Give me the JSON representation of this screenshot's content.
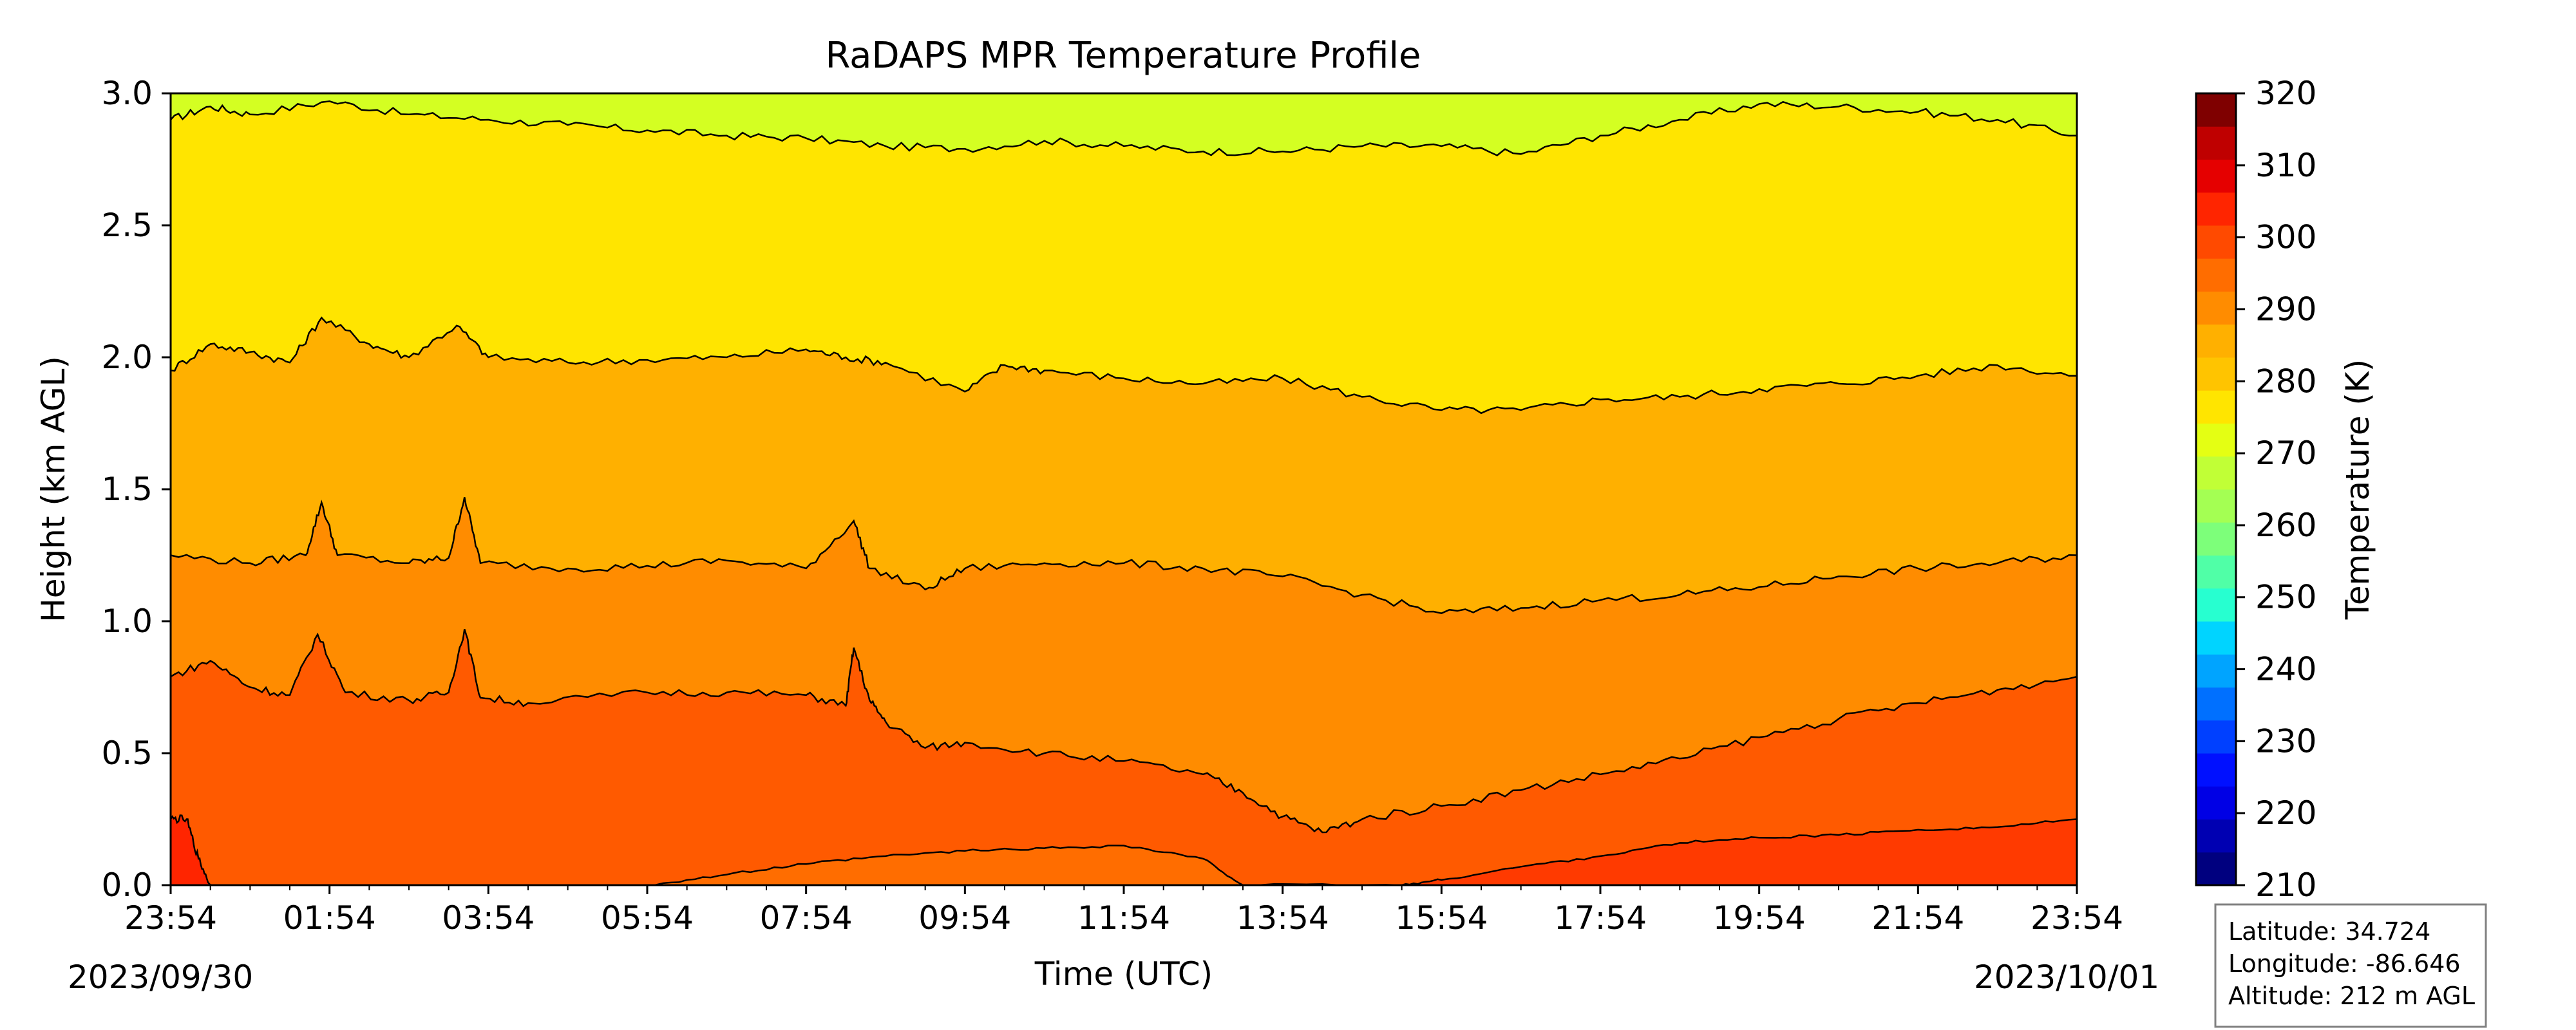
{
  "chart_data": {
    "type": "contour",
    "title": "RaDAPS MPR Temperature Profile",
    "xlabel": "Time (UTC)",
    "ylabel": "Height (km AGL)",
    "x_ticks": [
      "23:54",
      "01:54",
      "03:54",
      "05:54",
      "07:54",
      "09:54",
      "11:54",
      "13:54",
      "15:54",
      "17:54",
      "19:54",
      "21:54",
      "23:54"
    ],
    "start_date": "2023/09/30",
    "end_date": "2023/10/01",
    "xlim_hours": [
      0,
      24
    ],
    "y_ticks": [
      "0.0",
      "0.5",
      "1.0",
      "1.5",
      "2.0",
      "2.5",
      "3.0"
    ],
    "ylim": [
      0,
      3
    ],
    "colorbar": {
      "label": "Temperature (K)",
      "min": 210,
      "max": 320,
      "step": 5,
      "tick_labels": [
        "210",
        "220",
        "230",
        "240",
        "250",
        "260",
        "270",
        "280",
        "290",
        "300",
        "310",
        "320"
      ],
      "colors": [
        "#00007f",
        "#0000b2",
        "#0000e5",
        "#0010ff",
        "#0040ff",
        "#0070ff",
        "#00a4ff",
        "#00d4ff",
        "#27ffd0",
        "#50ffa7",
        "#7dff7a",
        "#a4ff53",
        "#c1ff36",
        "#e4ff13",
        "#ffe500",
        "#ffc400",
        "#ffb000",
        "#ff8c00",
        "#ff6d00",
        "#ff4a00",
        "#ff2500",
        "#e50000",
        "#bf0000",
        "#7f0000"
      ]
    },
    "contour_levels": [
      {
        "level": 305,
        "fill_color": "#ff2500",
        "points": [
          [
            0,
            0.25
          ],
          [
            0.2,
            0.25
          ],
          [
            0.35,
            0.1
          ],
          [
            0.5,
            0
          ]
        ]
      },
      {
        "level": 300,
        "fill_color": "#ff5a00",
        "points": [
          [
            0,
            0.79
          ],
          [
            0.5,
            0.85
          ],
          [
            1,
            0.75
          ],
          [
            1.5,
            0.72
          ],
          [
            1.85,
            0.95
          ],
          [
            2.2,
            0.73
          ],
          [
            3,
            0.7
          ],
          [
            3.5,
            0.73
          ],
          [
            3.7,
            0.97
          ],
          [
            3.9,
            0.71
          ],
          [
            4.5,
            0.69
          ],
          [
            6,
            0.73
          ],
          [
            7,
            0.73
          ],
          [
            8,
            0.72
          ],
          [
            8.5,
            0.68
          ],
          [
            8.6,
            0.9
          ],
          [
            8.8,
            0.7
          ],
          [
            9,
            0.62
          ],
          [
            9.5,
            0.52
          ],
          [
            10,
            0.54
          ],
          [
            11,
            0.5
          ],
          [
            12,
            0.47
          ],
          [
            13,
            0.42
          ],
          [
            13.5,
            0.35
          ],
          [
            14,
            0.26
          ],
          [
            14.5,
            0.2
          ],
          [
            15,
            0.25
          ],
          [
            16,
            0.3
          ],
          [
            17,
            0.36
          ],
          [
            18,
            0.42
          ],
          [
            19,
            0.48
          ],
          [
            20,
            0.56
          ],
          [
            21,
            0.63
          ],
          [
            22,
            0.69
          ],
          [
            23,
            0.74
          ],
          [
            24,
            0.79
          ]
        ]
      },
      {
        "level": 295,
        "fill_color": "#ff8c00",
        "points": [
          [
            0,
            1.25
          ],
          [
            1,
            1.22
          ],
          [
            1.7,
            1.25
          ],
          [
            1.9,
            1.45
          ],
          [
            2.1,
            1.25
          ],
          [
            3,
            1.22
          ],
          [
            3.5,
            1.24
          ],
          [
            3.7,
            1.47
          ],
          [
            3.9,
            1.22
          ],
          [
            5,
            1.2
          ],
          [
            6,
            1.21
          ],
          [
            7,
            1.23
          ],
          [
            8,
            1.2
          ],
          [
            8.6,
            1.38
          ],
          [
            8.8,
            1.2
          ],
          [
            9.5,
            1.12
          ],
          [
            10,
            1.2
          ],
          [
            11,
            1.22
          ],
          [
            12,
            1.22
          ],
          [
            13,
            1.2
          ],
          [
            14,
            1.17
          ],
          [
            15,
            1.1
          ],
          [
            16,
            1.03
          ],
          [
            17,
            1.05
          ],
          [
            18,
            1.08
          ],
          [
            19,
            1.1
          ],
          [
            20,
            1.13
          ],
          [
            21,
            1.17
          ],
          [
            22,
            1.2
          ],
          [
            23,
            1.22
          ],
          [
            24,
            1.25
          ]
        ]
      },
      {
        "level": 290,
        "fill_color": "#ffb000",
        "points": [
          [
            0,
            1.95
          ],
          [
            0.5,
            2.05
          ],
          [
            1,
            2.02
          ],
          [
            1.5,
            1.98
          ],
          [
            1.9,
            2.15
          ],
          [
            2.5,
            2.05
          ],
          [
            3,
            2.0
          ],
          [
            3.6,
            2.12
          ],
          [
            4,
            2.0
          ],
          [
            5,
            1.98
          ],
          [
            6,
            1.99
          ],
          [
            7,
            2.0
          ],
          [
            8,
            2.03
          ],
          [
            8.5,
            2.0
          ],
          [
            9,
            1.98
          ],
          [
            10,
            1.87
          ],
          [
            10.5,
            1.97
          ],
          [
            11,
            1.95
          ],
          [
            12,
            1.92
          ],
          [
            13,
            1.9
          ],
          [
            14,
            1.92
          ],
          [
            15,
            1.85
          ],
          [
            16,
            1.8
          ],
          [
            17,
            1.8
          ],
          [
            18,
            1.84
          ],
          [
            19,
            1.85
          ],
          [
            20,
            1.88
          ],
          [
            21,
            1.9
          ],
          [
            22,
            1.93
          ],
          [
            23,
            1.97
          ],
          [
            24,
            1.93
          ]
        ]
      },
      {
        "level": 285,
        "fill_color": "#ffe500",
        "points": [
          [
            0,
            2.9
          ],
          [
            0.5,
            2.95
          ],
          [
            1,
            2.92
          ],
          [
            2,
            2.97
          ],
          [
            3,
            2.92
          ],
          [
            4,
            2.9
          ],
          [
            5,
            2.88
          ],
          [
            6,
            2.86
          ],
          [
            7,
            2.84
          ],
          [
            8,
            2.83
          ],
          [
            9,
            2.8
          ],
          [
            10,
            2.79
          ],
          [
            11,
            2.82
          ],
          [
            12,
            2.8
          ],
          [
            13,
            2.78
          ],
          [
            14,
            2.78
          ],
          [
            15,
            2.8
          ],
          [
            16,
            2.8
          ],
          [
            17,
            2.77
          ],
          [
            18,
            2.84
          ],
          [
            19,
            2.9
          ],
          [
            20,
            2.96
          ],
          [
            21,
            2.95
          ],
          [
            22,
            2.93
          ],
          [
            23,
            2.9
          ],
          [
            24,
            2.84
          ]
        ]
      }
    ],
    "top_fill_color": "#d4ff22",
    "extra_contour_305": [
      [
        6,
        0
      ],
      [
        7,
        0.04
      ],
      [
        8,
        0.08
      ],
      [
        9,
        0.11
      ],
      [
        10,
        0.13
      ],
      [
        11,
        0.14
      ],
      [
        12,
        0.15
      ],
      [
        13,
        0.1
      ],
      [
        13.5,
        0
      ],
      [
        15.5,
        0
      ],
      [
        16,
        0.02
      ],
      [
        17,
        0.07
      ],
      [
        18,
        0.11
      ],
      [
        19,
        0.16
      ],
      [
        20,
        0.18
      ],
      [
        21,
        0.19
      ],
      [
        22,
        0.21
      ],
      [
        23,
        0.22
      ],
      [
        24,
        0.25
      ]
    ],
    "extra_fill_color": "#ff6d00"
  },
  "info_box": {
    "latitude": "Latitude: 34.724",
    "longitude": "Longitude: -86.646",
    "altitude": "Altitude: 212 m AGL"
  }
}
